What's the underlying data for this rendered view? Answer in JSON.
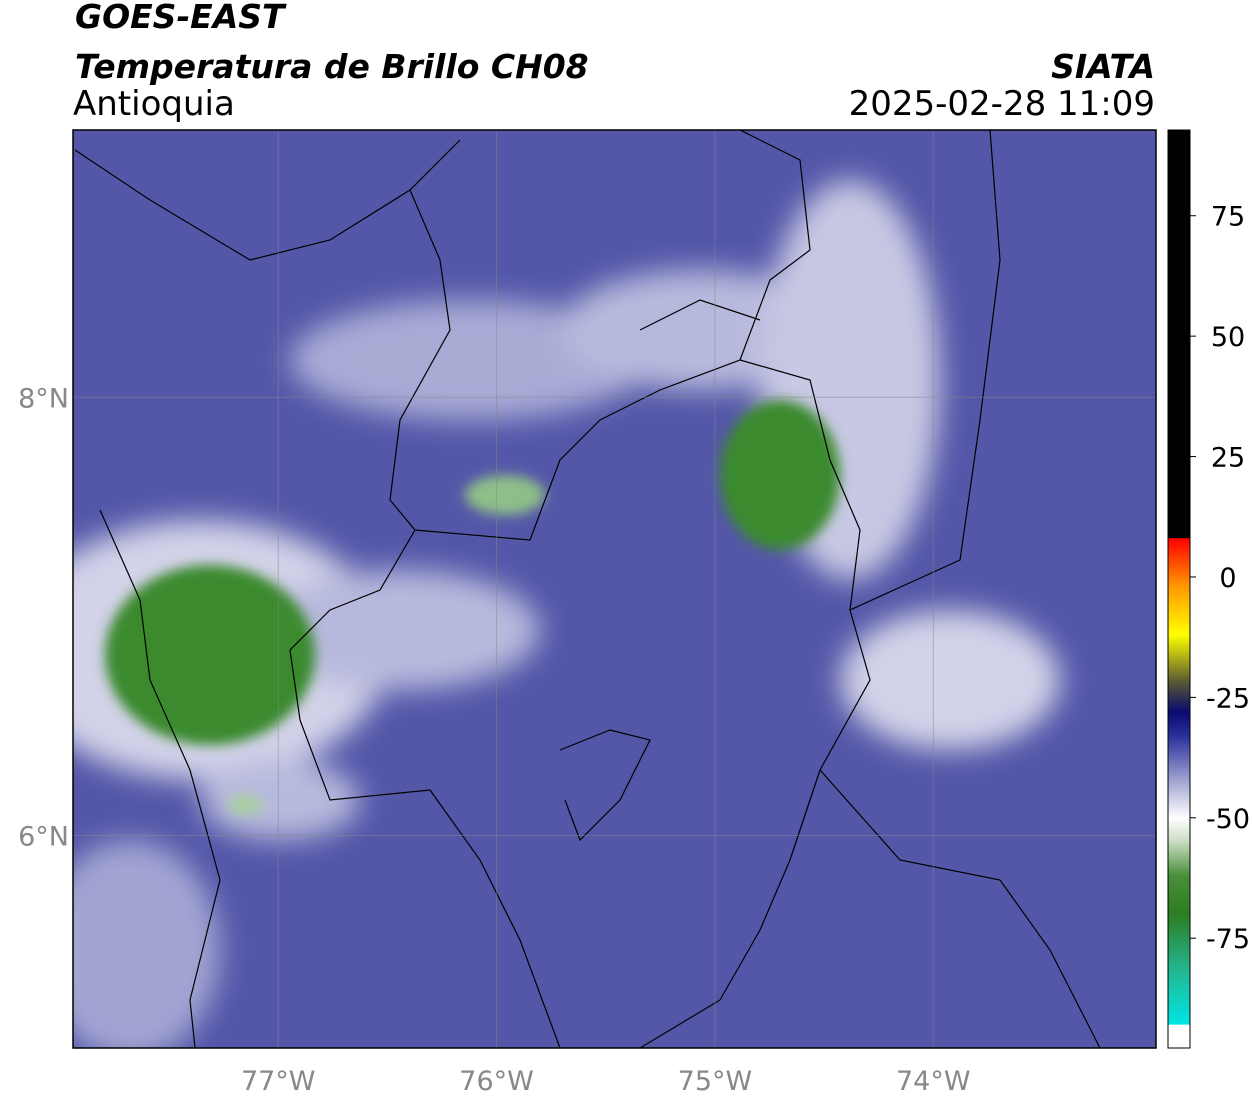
{
  "header": {
    "satellite": "GOES-EAST",
    "product": "Temperatura de Brillo CH08",
    "region": "Antioquia",
    "agency": "SIATA",
    "datetime": "2025-02-28 11:09"
  },
  "map": {
    "lonlim": [
      -77.94,
      -72.98
    ],
    "latlim": [
      5.03,
      9.22
    ],
    "lonticks": [
      {
        "value": -77,
        "label": "77°W"
      },
      {
        "value": -76,
        "label": "76°W"
      },
      {
        "value": -75,
        "label": "75°W"
      },
      {
        "value": -74,
        "label": "74°W"
      }
    ],
    "latticks": [
      {
        "value": 8,
        "label": "8°N"
      },
      {
        "value": 6,
        "label": "6°N"
      }
    ],
    "grid": true
  },
  "colorbar": {
    "lim": [
      -97.8,
      92.8
    ],
    "ticks": [
      75,
      50,
      25,
      0,
      -25,
      -50,
      -75
    ],
    "stops": [
      {
        "value": -97.8,
        "color": "#ffffff"
      },
      {
        "value": -93,
        "color": "#ffffff"
      },
      {
        "value": -92.9,
        "color": "#00e5e5"
      },
      {
        "value": -82,
        "color": "#22b894"
      },
      {
        "value": -70,
        "color": "#2e7d22"
      },
      {
        "value": -62,
        "color": "#4a8f3a"
      },
      {
        "value": -55,
        "color": "#c8dcc0"
      },
      {
        "value": -50,
        "color": "#ffffff"
      },
      {
        "value": -42,
        "color": "#9da0d0"
      },
      {
        "value": -33,
        "color": "#2a2f9a"
      },
      {
        "value": -28,
        "color": "#0a0a70"
      },
      {
        "value": -22,
        "color": "#555533"
      },
      {
        "value": -12,
        "color": "#ffff00"
      },
      {
        "value": -2,
        "color": "#ff9900"
      },
      {
        "value": 8,
        "color": "#ff0000"
      },
      {
        "value": 8.1,
        "color": "#000000"
      },
      {
        "value": 92.8,
        "color": "#000000"
      }
    ]
  }
}
